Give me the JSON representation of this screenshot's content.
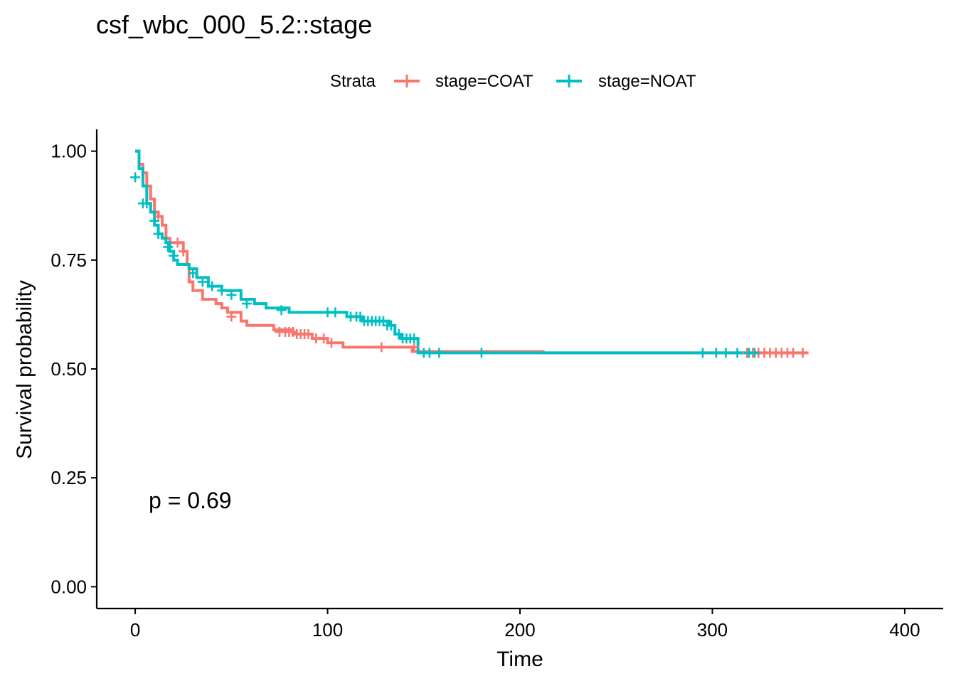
{
  "chart_data": {
    "type": "line",
    "subtype": "kaplan-meier",
    "title": "csf_wbc_000_5.2::stage",
    "xlabel": "Time",
    "ylabel": "Survival probability",
    "xlim": [
      -20,
      420
    ],
    "ylim": [
      -0.05,
      1.05
    ],
    "xticks": [
      0,
      100,
      200,
      300,
      400
    ],
    "xtick_labels": [
      "0",
      "100",
      "200",
      "300",
      "400"
    ],
    "yticks": [
      0,
      0.25,
      0.5,
      0.75,
      1
    ],
    "ytick_labels": [
      "0.00",
      "0.25",
      "0.50",
      "0.75",
      "1.00"
    ],
    "grid": false,
    "legend": {
      "title": "Strata",
      "position": "top",
      "entries": [
        "stage=COAT",
        "stage=NOAT"
      ]
    },
    "annotation": "p = 0.69",
    "annotation_pos": [
      7,
      0.2
    ],
    "series": [
      {
        "name": "stage=COAT",
        "color": "#F8766D",
        "steps": [
          [
            0,
            1.0
          ],
          [
            2,
            0.97
          ],
          [
            4,
            0.95
          ],
          [
            6,
            0.92
          ],
          [
            8,
            0.89
          ],
          [
            10,
            0.86
          ],
          [
            12,
            0.85
          ],
          [
            14,
            0.83
          ],
          [
            16,
            0.8
          ],
          [
            18,
            0.79
          ],
          [
            25,
            0.77
          ],
          [
            27,
            0.74
          ],
          [
            28,
            0.7
          ],
          [
            30,
            0.68
          ],
          [
            35,
            0.66
          ],
          [
            42,
            0.65
          ],
          [
            45,
            0.64
          ],
          [
            48,
            0.63
          ],
          [
            55,
            0.61
          ],
          [
            58,
            0.6
          ],
          [
            72,
            0.59
          ],
          [
            82,
            0.58
          ],
          [
            92,
            0.57
          ],
          [
            100,
            0.56
          ],
          [
            108,
            0.55
          ],
          [
            144,
            0.54
          ],
          [
            212,
            0.537
          ],
          [
            350,
            0.537
          ]
        ],
        "censors": [
          [
            12,
            0.85
          ],
          [
            22,
            0.79
          ],
          [
            25,
            0.77
          ],
          [
            50,
            0.62
          ],
          [
            75,
            0.585
          ],
          [
            78,
            0.585
          ],
          [
            80,
            0.585
          ],
          [
            82,
            0.585
          ],
          [
            84,
            0.58
          ],
          [
            86,
            0.58
          ],
          [
            88,
            0.58
          ],
          [
            90,
            0.58
          ],
          [
            94,
            0.57
          ],
          [
            98,
            0.57
          ],
          [
            102,
            0.56
          ],
          [
            128,
            0.55
          ],
          [
            145,
            0.55
          ],
          [
            318,
            0.537
          ],
          [
            321,
            0.537
          ],
          [
            324,
            0.537
          ],
          [
            327,
            0.537
          ],
          [
            330,
            0.537
          ],
          [
            333,
            0.537
          ],
          [
            336,
            0.537
          ],
          [
            339,
            0.537
          ],
          [
            342,
            0.537
          ],
          [
            347,
            0.537
          ]
        ]
      },
      {
        "name": "stage=NOAT",
        "color": "#00BFC4",
        "steps": [
          [
            0,
            1.0
          ],
          [
            2,
            0.96
          ],
          [
            4,
            0.92
          ],
          [
            6,
            0.88
          ],
          [
            8,
            0.86
          ],
          [
            10,
            0.83
          ],
          [
            12,
            0.81
          ],
          [
            14,
            0.8
          ],
          [
            16,
            0.79
          ],
          [
            18,
            0.77
          ],
          [
            20,
            0.75
          ],
          [
            22,
            0.74
          ],
          [
            28,
            0.73
          ],
          [
            32,
            0.71
          ],
          [
            38,
            0.69
          ],
          [
            45,
            0.68
          ],
          [
            55,
            0.66
          ],
          [
            62,
            0.65
          ],
          [
            68,
            0.64
          ],
          [
            80,
            0.63
          ],
          [
            110,
            0.62
          ],
          [
            118,
            0.61
          ],
          [
            132,
            0.6
          ],
          [
            135,
            0.58
          ],
          [
            138,
            0.57
          ],
          [
            147,
            0.537
          ],
          [
            325,
            0.537
          ]
        ],
        "censors": [
          [
            0,
            0.94
          ],
          [
            4,
            0.88
          ],
          [
            6,
            0.88
          ],
          [
            10,
            0.84
          ],
          [
            12,
            0.81
          ],
          [
            17,
            0.78
          ],
          [
            20,
            0.76
          ],
          [
            30,
            0.72
          ],
          [
            35,
            0.7
          ],
          [
            40,
            0.69
          ],
          [
            45,
            0.68
          ],
          [
            50,
            0.67
          ],
          [
            58,
            0.65
          ],
          [
            76,
            0.635
          ],
          [
            100,
            0.63
          ],
          [
            104,
            0.63
          ],
          [
            112,
            0.62
          ],
          [
            115,
            0.62
          ],
          [
            117,
            0.62
          ],
          [
            119,
            0.61
          ],
          [
            121,
            0.61
          ],
          [
            123,
            0.61
          ],
          [
            125,
            0.61
          ],
          [
            127,
            0.61
          ],
          [
            129,
            0.61
          ],
          [
            131,
            0.6
          ],
          [
            133,
            0.6
          ],
          [
            137,
            0.58
          ],
          [
            139,
            0.57
          ],
          [
            141,
            0.57
          ],
          [
            143,
            0.57
          ],
          [
            145,
            0.57
          ],
          [
            150,
            0.537
          ],
          [
            153,
            0.537
          ],
          [
            158,
            0.537
          ],
          [
            180,
            0.537
          ],
          [
            295,
            0.537
          ],
          [
            302,
            0.537
          ],
          [
            307,
            0.537
          ],
          [
            313,
            0.537
          ],
          [
            319,
            0.537
          ],
          [
            322,
            0.537
          ]
        ]
      }
    ]
  }
}
